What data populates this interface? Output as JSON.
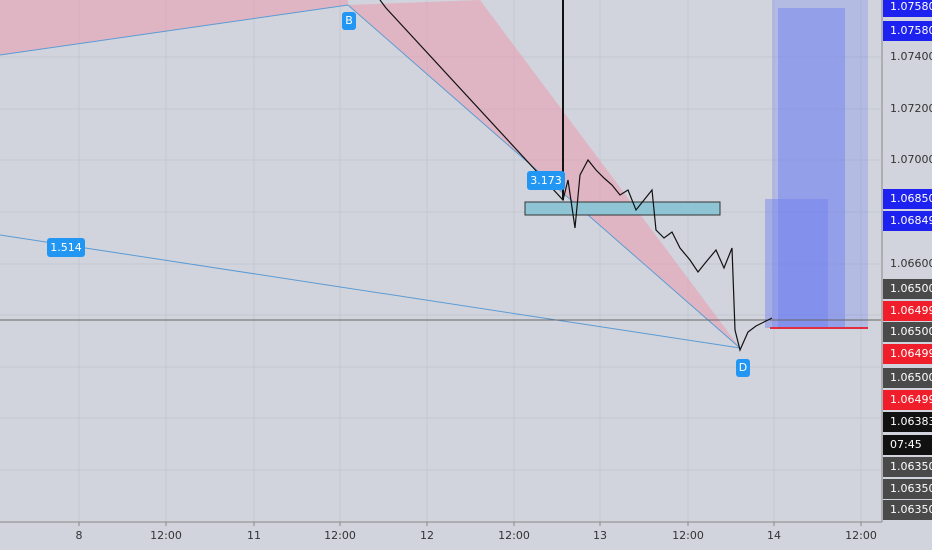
{
  "price_axis": [
    {
      "label": "1.07580",
      "kind": "blue"
    },
    {
      "label": "1.07580",
      "kind": "blue"
    },
    {
      "label": "1.07400",
      "kind": "plain"
    },
    {
      "label": "1.07200",
      "kind": "plain"
    },
    {
      "label": "1.07000",
      "kind": "plain"
    },
    {
      "label": "1.06850",
      "kind": "blue"
    },
    {
      "label": "1.06849",
      "kind": "blue"
    },
    {
      "label": "1.06600",
      "kind": "plain"
    },
    {
      "label": "1.06500",
      "kind": "gray"
    },
    {
      "label": "1.06499",
      "kind": "red"
    },
    {
      "label": "1.06500",
      "kind": "gray"
    },
    {
      "label": "1.06499",
      "kind": "red"
    },
    {
      "label": "1.06500",
      "kind": "gray"
    },
    {
      "label": "1.06499",
      "kind": "red"
    },
    {
      "label": "1.06383",
      "kind": "black"
    },
    {
      "label": "07:45",
      "kind": "black"
    },
    {
      "label": "1.06350",
      "kind": "gray"
    },
    {
      "label": "1.06350",
      "kind": "gray"
    },
    {
      "label": "1.06350",
      "kind": "gray"
    }
  ],
  "time_axis": [
    "8",
    "12:00",
    "11",
    "12:00",
    "12",
    "12:00",
    "13",
    "12:00",
    "14",
    "12:00"
  ],
  "pattern_labels": {
    "point_b": "B",
    "point_d": "D",
    "ratio_bc": "3.173",
    "ratio_xd": "1.514"
  }
}
